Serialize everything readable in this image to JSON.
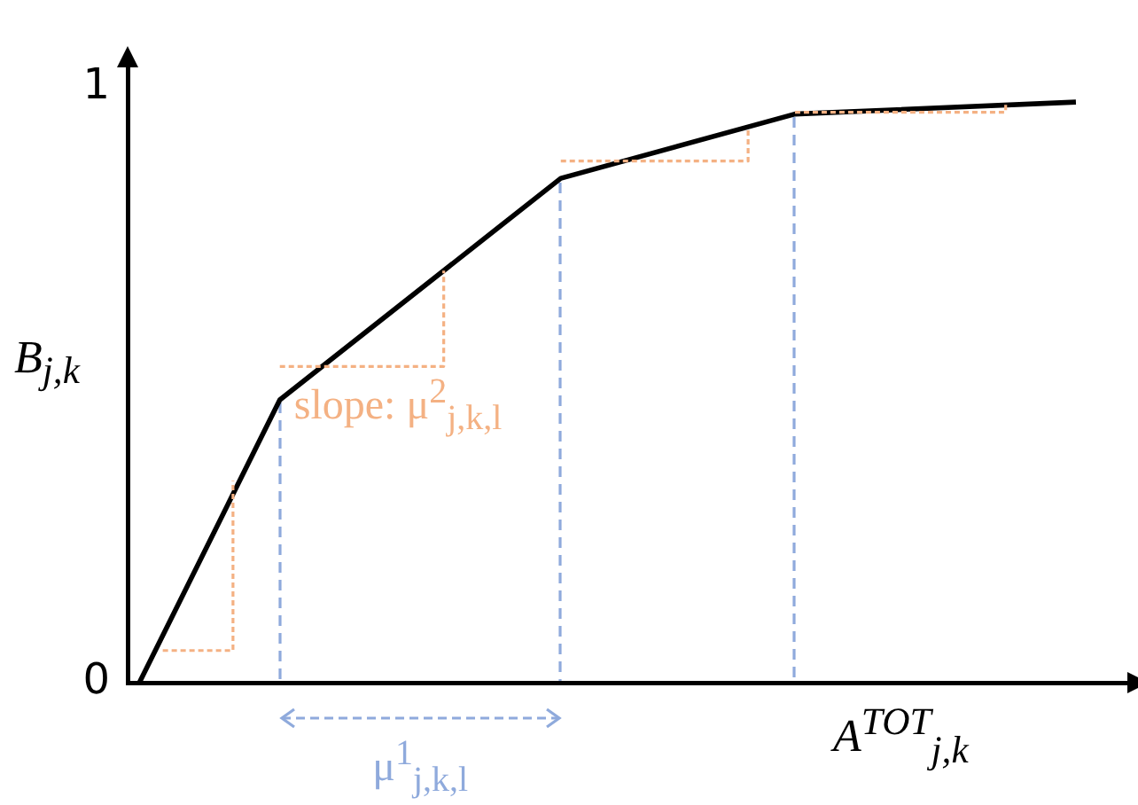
{
  "chart_data": {
    "type": "line",
    "ylabel": "B$_{j,k}$",
    "xlabel": "A$^{TOT}$$_{j,k}$",
    "ylim": [
      0,
      1.05
    ],
    "yticks": [
      0,
      1
    ],
    "grid": false,
    "legend": false,
    "marker": "none",
    "line_style": "solid",
    "annotations": [
      "slope: μ$^{2}$$_{j,k,l}$",
      "μ$^{1}$$_{j,k,l}$"
    ],
    "categories": [
      null,
      null,
      null,
      null,
      null,
      null,
      null,
      null,
      null,
      null,
      null,
      null,
      null,
      null,
      null,
      null,
      null,
      null,
      null,
      null,
      null,
      null,
      null,
      null,
      null,
      null,
      null,
      null,
      null,
      null,
      null,
      null,
      null,
      null,
      null,
      null,
      null,
      null,
      null,
      null,
      null,
      null,
      null
    ],
    "series": [
      {
        "color": "#000000",
        "values": [
          0,
          null,
          null,
          null,
          null,
          null,
          0.475,
          null,
          null,
          null,
          null,
          null,
          null,
          null,
          null,
          null,
          null,
          null,
          0.847,
          null,
          null,
          null,
          null,
          null,
          null,
          null,
          null,
          null,
          0.955,
          null,
          null,
          null,
          null,
          null,
          null,
          null,
          null,
          null,
          null,
          null,
          0.975,
          null,
          null
        ]
      },
      {
        "type": "step",
        "color": "#f4b183",
        "line_style": "dashed",
        "values": [
          null,
          0.054,
          null,
          null,
          0.339,
          null,
          null,
          null,
          null,
          null,
          null,
          null,
          null,
          null,
          null,
          null,
          null,
          null,
          null,
          null,
          null,
          null,
          null,
          null,
          null,
          null,
          null,
          null,
          null,
          null,
          null,
          null,
          null,
          null,
          null,
          null,
          null,
          null,
          null,
          null,
          null,
          null,
          null
        ]
      },
      {
        "type": "step",
        "color": "#f4b183",
        "line_style": "dashed",
        "values": [
          null,
          null,
          null,
          null,
          null,
          null,
          0.531,
          null,
          null,
          null,
          null,
          null,
          null,
          0.692,
          null,
          null,
          null,
          null,
          null,
          null,
          null,
          null,
          null,
          null,
          null,
          null,
          null,
          null,
          null,
          null,
          null,
          null,
          null,
          null,
          null,
          null,
          null,
          null,
          null,
          null,
          null,
          null,
          null
        ]
      },
      {
        "type": "step",
        "color": "#f4b183",
        "line_style": "dashed",
        "values": [
          null,
          null,
          null,
          null,
          null,
          null,
          null,
          null,
          null,
          null,
          null,
          null,
          null,
          null,
          null,
          null,
          null,
          null,
          0.876,
          null,
          null,
          null,
          null,
          null,
          null,
          null,
          0.932,
          null,
          null,
          null,
          null,
          null,
          null,
          null,
          null,
          null,
          null,
          null,
          null,
          null,
          null,
          null,
          null
        ]
      },
      {
        "type": "step",
        "color": "#f4b183",
        "line_style": "dashed",
        "values": [
          null,
          null,
          null,
          null,
          null,
          null,
          null,
          null,
          null,
          null,
          null,
          null,
          null,
          null,
          null,
          null,
          null,
          null,
          null,
          null,
          null,
          null,
          null,
          null,
          null,
          null,
          null,
          null,
          0.958,
          null,
          null,
          null,
          null,
          null,
          null,
          null,
          null,
          0.972,
          null,
          null,
          null,
          null,
          null
        ]
      }
    ]
  }
}
